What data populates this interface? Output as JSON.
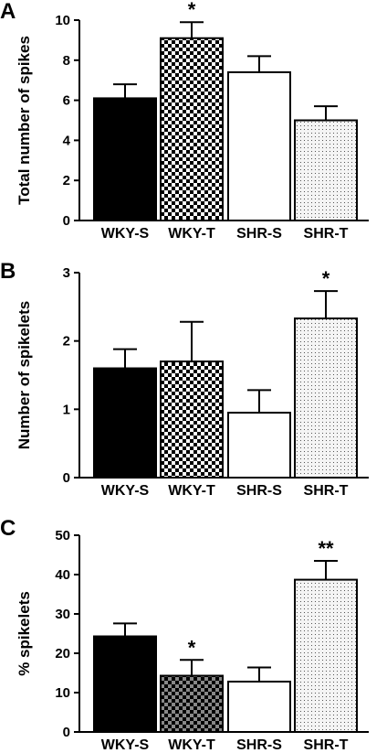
{
  "chart_data": [
    {
      "type": "bar",
      "panel": "A",
      "ylabel": "Total number of spikes",
      "categories": [
        "WKY-S",
        "WKY-T",
        "SHR-S",
        "SHR-T"
      ],
      "values": [
        6.1,
        9.1,
        7.4,
        5.0
      ],
      "errors": [
        0.7,
        0.8,
        0.8,
        0.7
      ],
      "significance": [
        "",
        "*",
        "",
        ""
      ],
      "ylim": [
        0,
        10
      ],
      "yticks": [
        0,
        2,
        4,
        6,
        8,
        10
      ],
      "fills": [
        "solid",
        "checker-black",
        "white",
        "dots"
      ],
      "colors": {
        "bar_solid": "#000000",
        "bar_white": "#ffffff",
        "checker": "#000000",
        "dots": "#555555"
      }
    },
    {
      "type": "bar",
      "panel": "B",
      "ylabel": "Number of spikelets",
      "categories": [
        "WKY-S",
        "WKY-T",
        "SHR-S",
        "SHR-T"
      ],
      "values": [
        1.6,
        1.7,
        0.95,
        2.33
      ],
      "errors": [
        0.28,
        0.58,
        0.33,
        0.4
      ],
      "significance": [
        "",
        "",
        "",
        "*"
      ],
      "ylim": [
        0,
        3
      ],
      "yticks": [
        0,
        1,
        2,
        3
      ],
      "fills": [
        "solid",
        "checker-black",
        "white",
        "dots"
      ],
      "colors": {
        "bar_solid": "#000000",
        "bar_white": "#ffffff",
        "checker": "#000000",
        "dots": "#555555"
      }
    },
    {
      "type": "bar",
      "panel": "C",
      "ylabel": "% spikelets",
      "categories": [
        "WKY-S",
        "WKY-T",
        "SHR-S",
        "SHR-T"
      ],
      "values": [
        24.3,
        14.3,
        12.8,
        38.7
      ],
      "errors": [
        3.3,
        4.0,
        3.6,
        4.8
      ],
      "significance": [
        "",
        "*",
        "",
        "**"
      ],
      "ylim": [
        0,
        50
      ],
      "yticks": [
        0,
        10,
        20,
        30,
        40,
        50
      ],
      "fills": [
        "solid",
        "checker-gray",
        "white",
        "dots"
      ],
      "colors": {
        "bar_solid": "#000000",
        "bar_white": "#ffffff",
        "checker": "#000000",
        "checker_gray": "#888888",
        "dots": "#555555"
      }
    }
  ]
}
